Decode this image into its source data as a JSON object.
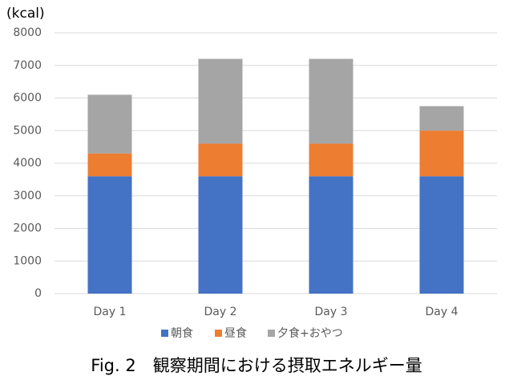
{
  "chart_data": {
    "type": "stacked_bar",
    "title": "Fig. 2　観察期間における摂取エネルギー量",
    "y_label": "(kcal)",
    "categories": [
      "Day 1",
      "Day 2",
      "Day 3",
      "Day 4"
    ],
    "series": [
      {
        "name": "朝食",
        "color": "#4472c4",
        "values": [
          3600,
          3600,
          3600,
          3600
        ]
      },
      {
        "name": "昼食",
        "color": "#ed7d31",
        "values": [
          700,
          1000,
          1000,
          1400
        ]
      },
      {
        "name": "夕食+おやつ",
        "color": "#a5a5a5",
        "values": [
          1800,
          2600,
          2600,
          750
        ]
      }
    ],
    "ylim": [
      0,
      8000
    ],
    "yticks": [
      0,
      1000,
      2000,
      3000,
      4000,
      5000,
      6000,
      7000,
      8000
    ],
    "grid": true,
    "legend": "bottom"
  }
}
